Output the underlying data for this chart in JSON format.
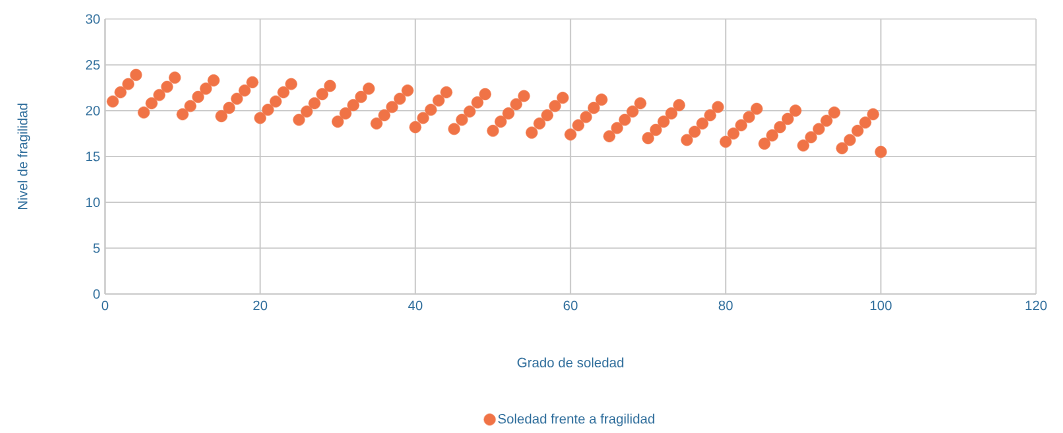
{
  "chart_data": {
    "type": "scatter",
    "xlabel": "Grado de soledad",
    "ylabel": "Nivel de fragilidad",
    "xlim": [
      0,
      120
    ],
    "xticks": [
      0,
      20,
      40,
      60,
      80,
      100,
      120
    ],
    "ylim": [
      0,
      30
    ],
    "yticks": [
      0,
      5,
      10,
      15,
      20,
      25,
      30
    ],
    "grid": true,
    "legend": "bottom",
    "marker": "circle",
    "series": [
      {
        "name": "Soledad frente a fragilidad",
        "color": "#f07346",
        "x": [
          1,
          2,
          3,
          4,
          5,
          6,
          7,
          8,
          9,
          10,
          11,
          12,
          13,
          14,
          15,
          16,
          17,
          18,
          19,
          20,
          21,
          22,
          23,
          24,
          25,
          26,
          27,
          28,
          29,
          30,
          31,
          32,
          33,
          34,
          35,
          36,
          37,
          38,
          39,
          40,
          41,
          42,
          43,
          44,
          45,
          46,
          47,
          48,
          49,
          50,
          51,
          52,
          53,
          54,
          55,
          56,
          57,
          58,
          59,
          60,
          61,
          62,
          63,
          64,
          65,
          66,
          67,
          68,
          69,
          70,
          71,
          72,
          73,
          74,
          75,
          76,
          77,
          78,
          79,
          80,
          81,
          82,
          83,
          84,
          85,
          86,
          87,
          88,
          89,
          90,
          91,
          92,
          93,
          94,
          95,
          96,
          97,
          98,
          99,
          100
        ],
        "values": [
          21.0,
          22.0,
          22.9,
          23.9,
          19.8,
          20.8,
          21.7,
          22.6,
          23.6,
          19.6,
          20.5,
          21.5,
          22.4,
          23.3,
          19.4,
          20.3,
          21.3,
          22.2,
          23.1,
          19.2,
          20.1,
          21.0,
          22.0,
          22.9,
          19.0,
          19.9,
          20.8,
          21.8,
          22.7,
          18.8,
          19.7,
          20.6,
          21.5,
          22.4,
          18.6,
          19.5,
          20.4,
          21.3,
          22.2,
          18.2,
          19.2,
          20.1,
          21.1,
          22.0,
          18.0,
          19.0,
          19.9,
          20.9,
          21.8,
          17.8,
          18.8,
          19.7,
          20.7,
          21.6,
          17.6,
          18.6,
          19.5,
          20.5,
          21.4,
          17.4,
          18.4,
          19.3,
          20.3,
          21.2,
          17.2,
          18.1,
          19.0,
          19.9,
          20.8,
          17.0,
          17.9,
          18.8,
          19.7,
          20.6,
          16.8,
          17.7,
          18.6,
          19.5,
          20.4,
          16.6,
          17.5,
          18.4,
          19.3,
          20.2,
          16.4,
          17.3,
          18.2,
          19.1,
          20.0,
          16.2,
          17.1,
          18.0,
          18.9,
          19.8,
          15.9,
          16.8,
          17.8,
          18.7,
          19.6,
          15.5
        ]
      }
    ]
  }
}
